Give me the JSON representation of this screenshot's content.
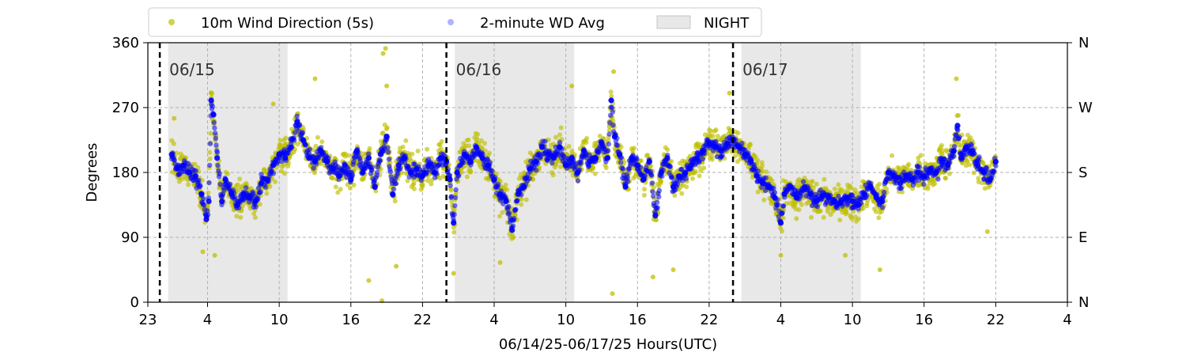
{
  "chart_data": {
    "type": "scatter",
    "title": "",
    "xlabel": "06/14/25-06/17/25  Hours(UTC)",
    "ylabel": "Degrees",
    "x_unit": "hours (UTC) since 06/14/25 23:00",
    "xlim": [
      0,
      77
    ],
    "ylim": [
      0,
      360
    ],
    "x_ticks": [
      {
        "value": 0,
        "label": "23"
      },
      {
        "value": 5,
        "label": "4"
      },
      {
        "value": 11,
        "label": "10"
      },
      {
        "value": 17,
        "label": "16"
      },
      {
        "value": 23,
        "label": "22"
      },
      {
        "value": 29,
        "label": "4"
      },
      {
        "value": 35,
        "label": "10"
      },
      {
        "value": 41,
        "label": "16"
      },
      {
        "value": 47,
        "label": "22"
      },
      {
        "value": 53,
        "label": "4"
      },
      {
        "value": 59,
        "label": "10"
      },
      {
        "value": 65,
        "label": "16"
      },
      {
        "value": 71,
        "label": "22"
      },
      {
        "value": 77,
        "label": "4"
      }
    ],
    "y_ticks": [
      0,
      90,
      180,
      270,
      360
    ],
    "y2_ticks": [
      {
        "value": 0,
        "label": "N"
      },
      {
        "value": 90,
        "label": "E"
      },
      {
        "value": 180,
        "label": "S"
      },
      {
        "value": 270,
        "label": "W"
      },
      {
        "value": 360,
        "label": "N"
      }
    ],
    "grid": true,
    "legend_position": "top, above plot",
    "legend": [
      {
        "label": "10m Wind Direction (5s)",
        "kind": "point",
        "color": "#bfbf00"
      },
      {
        "label": "2-minute WD Avg",
        "kind": "point",
        "color": "#0000ff"
      },
      {
        "label": "NIGHT",
        "kind": "patch",
        "color": "#d9d9d9"
      }
    ],
    "night_shading": [
      [
        1.7,
        11.7
      ],
      [
        25.7,
        35.7
      ],
      [
        49.7,
        59.7
      ]
    ],
    "day_dividers": [
      {
        "x": 1,
        "label": "06/15"
      },
      {
        "x": 25,
        "label": "06/16"
      },
      {
        "x": 49,
        "label": "06/17"
      }
    ],
    "data_start": 2.0,
    "data_end": 71.0,
    "series": [
      {
        "name": "10m Wind Direction (5s)",
        "color": "#bfbf00",
        "scatter_spread": 28,
        "outliers": [
          {
            "x": 2.2,
            "y": 255
          },
          {
            "x": 4.6,
            "y": 70
          },
          {
            "x": 5.3,
            "y": 290
          },
          {
            "x": 5.6,
            "y": 65
          },
          {
            "x": 10.5,
            "y": 275
          },
          {
            "x": 14.0,
            "y": 310
          },
          {
            "x": 18.5,
            "y": 30
          },
          {
            "x": 19.6,
            "y": 2
          },
          {
            "x": 19.7,
            "y": 345
          },
          {
            "x": 19.9,
            "y": 352
          },
          {
            "x": 20.0,
            "y": 300
          },
          {
            "x": 20.8,
            "y": 50
          },
          {
            "x": 25.6,
            "y": 40
          },
          {
            "x": 29.5,
            "y": 55
          },
          {
            "x": 35.5,
            "y": 300
          },
          {
            "x": 38.9,
            "y": 12
          },
          {
            "x": 39.0,
            "y": 320
          },
          {
            "x": 42.3,
            "y": 35
          },
          {
            "x": 44.0,
            "y": 45
          },
          {
            "x": 48.7,
            "y": 290
          },
          {
            "x": 53.0,
            "y": 65
          },
          {
            "x": 58.4,
            "y": 65
          },
          {
            "x": 61.3,
            "y": 45
          },
          {
            "x": 67.7,
            "y": 310
          },
          {
            "x": 70.3,
            "y": 98
          }
        ]
      },
      {
        "name": "2-minute WD Avg",
        "color": "#0000ff",
        "points": [
          {
            "x": 2.0,
            "y": 205
          },
          {
            "x": 2.5,
            "y": 185
          },
          {
            "x": 3.0,
            "y": 190
          },
          {
            "x": 3.5,
            "y": 180
          },
          {
            "x": 4.0,
            "y": 175
          },
          {
            "x": 4.5,
            "y": 150
          },
          {
            "x": 4.9,
            "y": 115
          },
          {
            "x": 5.1,
            "y": 140
          },
          {
            "x": 5.3,
            "y": 280
          },
          {
            "x": 5.5,
            "y": 260
          },
          {
            "x": 5.8,
            "y": 200
          },
          {
            "x": 6.2,
            "y": 140
          },
          {
            "x": 6.5,
            "y": 170
          },
          {
            "x": 7.0,
            "y": 150
          },
          {
            "x": 7.5,
            "y": 135
          },
          {
            "x": 8.0,
            "y": 150
          },
          {
            "x": 8.5,
            "y": 145
          },
          {
            "x": 9.0,
            "y": 140
          },
          {
            "x": 9.5,
            "y": 165
          },
          {
            "x": 10.0,
            "y": 170
          },
          {
            "x": 10.5,
            "y": 190
          },
          {
            "x": 11.0,
            "y": 205
          },
          {
            "x": 11.5,
            "y": 200
          },
          {
            "x": 12.0,
            "y": 215
          },
          {
            "x": 12.5,
            "y": 250
          },
          {
            "x": 13.0,
            "y": 225
          },
          {
            "x": 13.5,
            "y": 200
          },
          {
            "x": 14.0,
            "y": 195
          },
          {
            "x": 14.5,
            "y": 210
          },
          {
            "x": 15.0,
            "y": 195
          },
          {
            "x": 15.5,
            "y": 185
          },
          {
            "x": 16.0,
            "y": 175
          },
          {
            "x": 16.5,
            "y": 190
          },
          {
            "x": 17.0,
            "y": 170
          },
          {
            "x": 17.5,
            "y": 210
          },
          {
            "x": 18.0,
            "y": 180
          },
          {
            "x": 18.5,
            "y": 200
          },
          {
            "x": 19.0,
            "y": 160
          },
          {
            "x": 19.5,
            "y": 205
          },
          {
            "x": 20.0,
            "y": 230
          },
          {
            "x": 20.5,
            "y": 150
          },
          {
            "x": 21.0,
            "y": 190
          },
          {
            "x": 21.5,
            "y": 200
          },
          {
            "x": 22.0,
            "y": 180
          },
          {
            "x": 22.5,
            "y": 185
          },
          {
            "x": 23.0,
            "y": 175
          },
          {
            "x": 23.5,
            "y": 190
          },
          {
            "x": 24.0,
            "y": 180
          },
          {
            "x": 24.5,
            "y": 200
          },
          {
            "x": 25.0,
            "y": 195
          },
          {
            "x": 25.3,
            "y": 170
          },
          {
            "x": 25.6,
            "y": 110
          },
          {
            "x": 25.9,
            "y": 180
          },
          {
            "x": 26.5,
            "y": 205
          },
          {
            "x": 27.0,
            "y": 195
          },
          {
            "x": 27.5,
            "y": 215
          },
          {
            "x": 28.0,
            "y": 200
          },
          {
            "x": 28.5,
            "y": 190
          },
          {
            "x": 29.0,
            "y": 170
          },
          {
            "x": 29.5,
            "y": 150
          },
          {
            "x": 30.0,
            "y": 140
          },
          {
            "x": 30.5,
            "y": 100
          },
          {
            "x": 31.0,
            "y": 150
          },
          {
            "x": 31.5,
            "y": 160
          },
          {
            "x": 32.0,
            "y": 185
          },
          {
            "x": 32.5,
            "y": 195
          },
          {
            "x": 33.0,
            "y": 215
          },
          {
            "x": 33.5,
            "y": 205
          },
          {
            "x": 34.0,
            "y": 200
          },
          {
            "x": 34.5,
            "y": 215
          },
          {
            "x": 35.0,
            "y": 190
          },
          {
            "x": 35.5,
            "y": 200
          },
          {
            "x": 36.0,
            "y": 180
          },
          {
            "x": 36.5,
            "y": 210
          },
          {
            "x": 37.0,
            "y": 195
          },
          {
            "x": 37.5,
            "y": 200
          },
          {
            "x": 38.0,
            "y": 220
          },
          {
            "x": 38.5,
            "y": 200
          },
          {
            "x": 38.8,
            "y": 280
          },
          {
            "x": 39.1,
            "y": 230
          },
          {
            "x": 39.5,
            "y": 205
          },
          {
            "x": 40.0,
            "y": 160
          },
          {
            "x": 40.5,
            "y": 200
          },
          {
            "x": 41.0,
            "y": 190
          },
          {
            "x": 41.5,
            "y": 170
          },
          {
            "x": 42.0,
            "y": 195
          },
          {
            "x": 42.5,
            "y": 120
          },
          {
            "x": 43.0,
            "y": 180
          },
          {
            "x": 43.5,
            "y": 200
          },
          {
            "x": 44.0,
            "y": 160
          },
          {
            "x": 44.5,
            "y": 175
          },
          {
            "x": 45.0,
            "y": 180
          },
          {
            "x": 45.5,
            "y": 190
          },
          {
            "x": 46.0,
            "y": 200
          },
          {
            "x": 46.5,
            "y": 210
          },
          {
            "x": 47.0,
            "y": 220
          },
          {
            "x": 47.5,
            "y": 215
          },
          {
            "x": 48.0,
            "y": 210
          },
          {
            "x": 48.5,
            "y": 220
          },
          {
            "x": 49.0,
            "y": 225
          },
          {
            "x": 49.5,
            "y": 215
          },
          {
            "x": 50.0,
            "y": 205
          },
          {
            "x": 50.5,
            "y": 195
          },
          {
            "x": 51.0,
            "y": 175
          },
          {
            "x": 51.5,
            "y": 165
          },
          {
            "x": 52.0,
            "y": 160
          },
          {
            "x": 52.5,
            "y": 145
          },
          {
            "x": 53.0,
            "y": 110
          },
          {
            "x": 53.3,
            "y": 150
          },
          {
            "x": 53.8,
            "y": 160
          },
          {
            "x": 54.3,
            "y": 145
          },
          {
            "x": 55.0,
            "y": 160
          },
          {
            "x": 55.5,
            "y": 150
          },
          {
            "x": 56.0,
            "y": 140
          },
          {
            "x": 56.5,
            "y": 148
          },
          {
            "x": 57.0,
            "y": 145
          },
          {
            "x": 57.5,
            "y": 140
          },
          {
            "x": 58.0,
            "y": 138
          },
          {
            "x": 58.5,
            "y": 145
          },
          {
            "x": 59.0,
            "y": 140
          },
          {
            "x": 59.5,
            "y": 135
          },
          {
            "x": 60.0,
            "y": 150
          },
          {
            "x": 60.5,
            "y": 160
          },
          {
            "x": 61.0,
            "y": 145
          },
          {
            "x": 61.5,
            "y": 140
          },
          {
            "x": 62.0,
            "y": 180
          },
          {
            "x": 62.5,
            "y": 175
          },
          {
            "x": 63.0,
            "y": 165
          },
          {
            "x": 63.5,
            "y": 175
          },
          {
            "x": 64.0,
            "y": 170
          },
          {
            "x": 64.5,
            "y": 180
          },
          {
            "x": 65.0,
            "y": 175
          },
          {
            "x": 65.5,
            "y": 185
          },
          {
            "x": 66.0,
            "y": 180
          },
          {
            "x": 66.5,
            "y": 195
          },
          {
            "x": 67.0,
            "y": 190
          },
          {
            "x": 67.5,
            "y": 210
          },
          {
            "x": 67.8,
            "y": 245
          },
          {
            "x": 68.1,
            "y": 200
          },
          {
            "x": 68.5,
            "y": 215
          },
          {
            "x": 69.0,
            "y": 210
          },
          {
            "x": 69.5,
            "y": 190
          },
          {
            "x": 70.0,
            "y": 180
          },
          {
            "x": 70.5,
            "y": 170
          },
          {
            "x": 71.0,
            "y": 195
          }
        ]
      }
    ]
  }
}
